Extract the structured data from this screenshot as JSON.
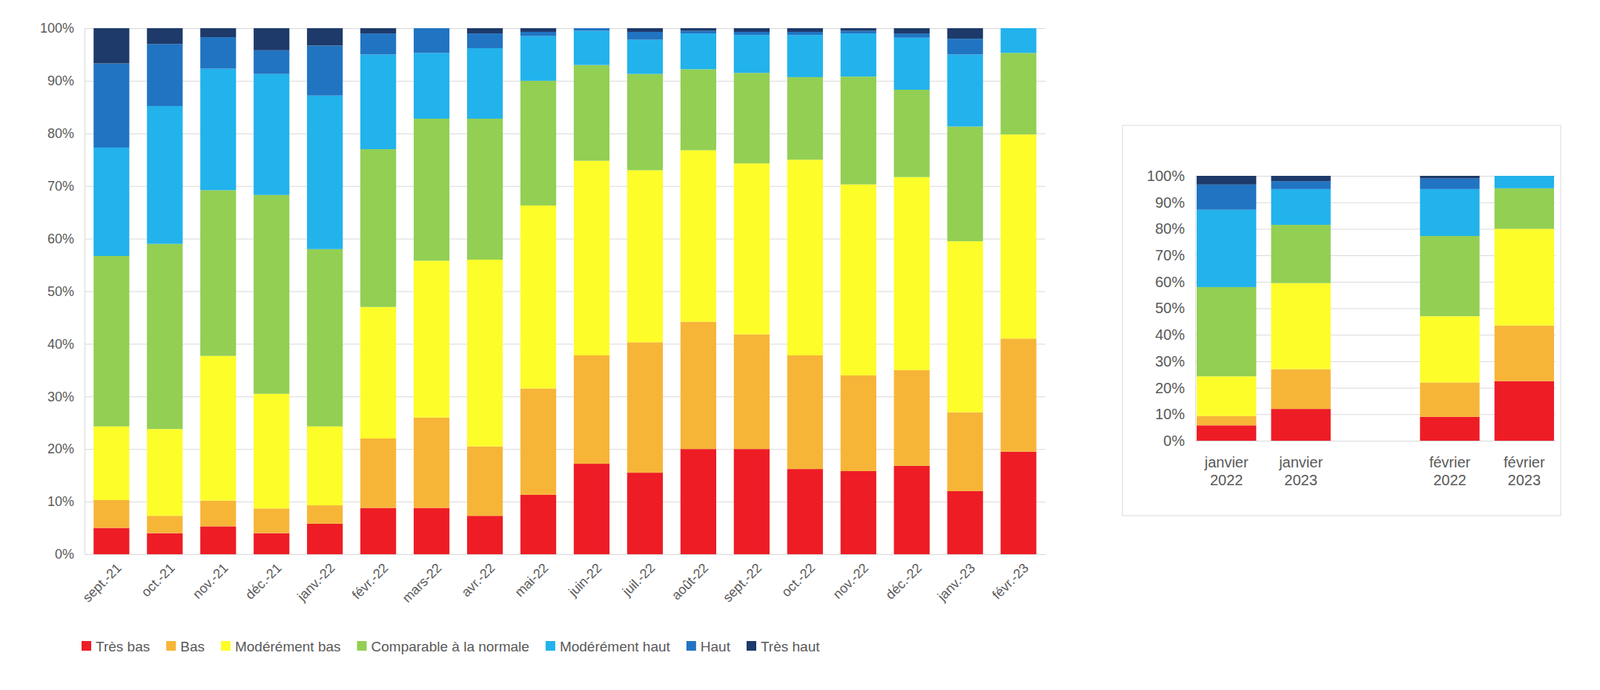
{
  "chart_data": [
    {
      "type": "bar",
      "stacked": true,
      "grid": true,
      "legend": "bottom",
      "categories": [
        "sept.-21",
        "oct.-21",
        "nov.-21",
        "déc.-21",
        "janv.-22",
        "févr.-22",
        "mars-22",
        "avr.-22",
        "mai-22",
        "juin-22",
        "juil.-22",
        "août-22",
        "sept.-22",
        "oct.-22",
        "nov.-22",
        "déc.-22",
        "janv.-23",
        "févr.-23"
      ],
      "ylim": [
        0,
        100
      ],
      "yticks": [
        {
          "value": 0,
          "label": "0%"
        },
        {
          "value": 10,
          "label": "10%"
        },
        {
          "value": 20,
          "label": "20%"
        },
        {
          "value": 30,
          "label": "30%"
        },
        {
          "value": 40,
          "label": "40%"
        },
        {
          "value": 50,
          "label": "50%"
        },
        {
          "value": 60,
          "label": "60%"
        },
        {
          "value": 70,
          "label": "70%"
        },
        {
          "value": 80,
          "label": "80%"
        },
        {
          "value": 90,
          "label": "90%"
        },
        {
          "value": 100,
          "label": "100%"
        }
      ],
      "series": [
        {
          "name": "Très bas",
          "color": "#ee1c25",
          "values": [
            5,
            4,
            5.3,
            4,
            5.8,
            8.8,
            8.8,
            7.3,
            11.3,
            17.2,
            15.5,
            20,
            20,
            16.2,
            15.8,
            16.8,
            12,
            19.5
          ]
        },
        {
          "name": "Bas",
          "color": "#f7b538",
          "values": [
            5.3,
            3.3,
            4.9,
            4.7,
            3.5,
            13.2,
            17.2,
            13.2,
            20.2,
            20.6,
            24.8,
            24.2,
            21.8,
            21.6,
            18.2,
            18.2,
            15,
            21.5
          ]
        },
        {
          "name": "Modérément bas",
          "color": "#fdfd2a",
          "values": [
            14,
            16.5,
            27.5,
            21.8,
            15,
            25,
            29.8,
            35.5,
            34.8,
            37,
            32.7,
            32.6,
            32.5,
            37.2,
            36.3,
            36.7,
            32.5,
            38.8
          ]
        },
        {
          "name": "Comparable à la normale",
          "color": "#92cf53",
          "values": [
            32.4,
            35.2,
            31.5,
            37.8,
            33.7,
            30,
            27,
            26.8,
            23.7,
            18.2,
            18.3,
            15.4,
            17.2,
            15.7,
            20.5,
            16.6,
            21.8,
            15.5
          ]
        },
        {
          "name": "Modérément haut",
          "color": "#22b2ec",
          "values": [
            20.6,
            26.2,
            23.1,
            23,
            29.2,
            18,
            12.5,
            13.4,
            8.5,
            6.5,
            6.5,
            6.8,
            7.2,
            8,
            8.2,
            9.9,
            13.7,
            4.7
          ]
        },
        {
          "name": "Haut",
          "color": "#2174c2",
          "values": [
            16,
            11.8,
            6,
            4.5,
            9.5,
            4,
            4.7,
            2.8,
            0.8,
            0.5,
            1.5,
            0.5,
            0.6,
            0.6,
            0.5,
            0.8,
            3,
            0
          ]
        },
        {
          "name": "Très haut",
          "color": "#1d3a6a",
          "values": [
            6.7,
            3,
            1.7,
            4.2,
            3.3,
            1,
            0,
            1,
            0.7,
            0,
            0.7,
            0.5,
            0.7,
            0.7,
            0.5,
            1,
            2,
            0
          ]
        }
      ]
    },
    {
      "type": "bar",
      "stacked": true,
      "grid": true,
      "categories": [
        "janvier 2022",
        "janvier 2023",
        null,
        "février 2022",
        "février 2023"
      ],
      "ylim": [
        0,
        100
      ],
      "yticks": [
        {
          "value": 0,
          "label": "0%"
        },
        {
          "value": 10,
          "label": "10%"
        },
        {
          "value": 20,
          "label": "20%"
        },
        {
          "value": 30,
          "label": "30%"
        },
        {
          "value": 40,
          "label": "40%"
        },
        {
          "value": 50,
          "label": "50%"
        },
        {
          "value": 60,
          "label": "60%"
        },
        {
          "value": 70,
          "label": "70%"
        },
        {
          "value": 80,
          "label": "80%"
        },
        {
          "value": 90,
          "label": "90%"
        },
        {
          "value": 100,
          "label": "100%"
        }
      ],
      "series": [
        {
          "name": "Très bas",
          "color": "#ee1c25",
          "values": [
            5.8,
            12,
            null,
            9,
            22.5
          ]
        },
        {
          "name": "Bas",
          "color": "#f7b538",
          "values": [
            3.5,
            15,
            null,
            13,
            21
          ]
        },
        {
          "name": "Modérément bas",
          "color": "#fdfd2a",
          "values": [
            15,
            32.5,
            null,
            25,
            36.5
          ]
        },
        {
          "name": "Comparable à la normale",
          "color": "#92cf53",
          "values": [
            33.7,
            22,
            null,
            30.3,
            15.3
          ]
        },
        {
          "name": "Modérément haut",
          "color": "#22b2ec",
          "values": [
            29.2,
            13.5,
            null,
            17.7,
            4.7
          ]
        },
        {
          "name": "Haut",
          "color": "#2174c2",
          "values": [
            9.5,
            3,
            null,
            4,
            0
          ]
        },
        {
          "name": "Très haut",
          "color": "#1d3a6a",
          "values": [
            3.3,
            2,
            null,
            1,
            0
          ]
        }
      ]
    }
  ]
}
